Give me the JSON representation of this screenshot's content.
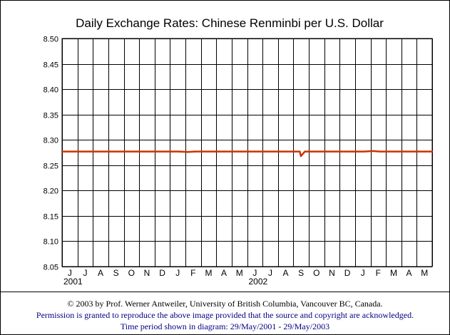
{
  "chart_data": {
    "type": "line",
    "title": "Daily Exchange Rates: Chinese Renminbi per U.S. Dollar",
    "xlabel": "",
    "ylabel": "",
    "ylim": [
      8.05,
      8.5
    ],
    "yticks": [
      "8.50",
      "8.45",
      "8.40",
      "8.35",
      "8.30",
      "8.25",
      "8.20",
      "8.15",
      "8.10",
      "8.05"
    ],
    "month_labels": [
      "J",
      "J",
      "A",
      "S",
      "O",
      "N",
      "D",
      "J",
      "F",
      "M",
      "A",
      "M",
      "J",
      "J",
      "A",
      "S",
      "O",
      "N",
      "D",
      "J",
      "F",
      "M",
      "A",
      "M"
    ],
    "year_labels": [
      {
        "label": "2001",
        "month_index": 0
      },
      {
        "label": "2002",
        "month_index": 12
      }
    ],
    "grid": true,
    "line_color": "#cc3300",
    "series": [
      {
        "x": [
          "2001-05-29",
          "2001-06-15",
          "2001-07-01",
          "2001-07-15",
          "2001-08-01",
          "2001-08-15",
          "2001-09-01",
          "2001-09-15",
          "2001-10-01",
          "2001-10-15",
          "2001-11-01",
          "2001-11-15",
          "2001-12-01",
          "2001-12-15",
          "2002-01-01",
          "2002-01-15",
          "2002-02-01",
          "2002-02-15",
          "2002-03-01",
          "2002-03-15",
          "2002-04-01",
          "2002-04-15",
          "2002-05-01",
          "2002-05-15",
          "2002-06-01",
          "2002-06-15",
          "2002-07-01",
          "2002-07-15",
          "2002-08-01",
          "2002-08-15",
          "2002-09-01",
          "2002-09-10",
          "2002-09-12",
          "2002-09-20",
          "2002-10-01",
          "2002-10-15",
          "2002-11-01",
          "2002-11-15",
          "2002-12-01",
          "2002-12-15",
          "2003-01-01",
          "2003-01-15",
          "2003-02-01",
          "2003-02-15",
          "2003-03-01",
          "2003-03-15",
          "2003-04-01",
          "2003-04-15",
          "2003-05-01",
          "2003-05-15",
          "2003-05-29"
        ],
        "values": [
          8.277,
          8.277,
          8.277,
          8.277,
          8.277,
          8.277,
          8.277,
          8.277,
          8.277,
          8.277,
          8.277,
          8.277,
          8.277,
          8.277,
          8.277,
          8.277,
          8.276,
          8.277,
          8.277,
          8.277,
          8.277,
          8.277,
          8.277,
          8.277,
          8.277,
          8.277,
          8.277,
          8.277,
          8.277,
          8.277,
          8.277,
          8.277,
          8.268,
          8.277,
          8.277,
          8.277,
          8.277,
          8.277,
          8.277,
          8.277,
          8.277,
          8.277,
          8.278,
          8.277,
          8.277,
          8.277,
          8.277,
          8.277,
          8.277,
          8.277,
          8.277
        ]
      }
    ]
  },
  "footer": {
    "line1": "© 2003 by Prof. Werner Antweiler, University of British Columbia, Vancouver BC, Canada.",
    "line2": "Permission is granted to reproduce the above image provided that the source and copyright are acknowledged.",
    "line3": "Time period shown in diagram: 29/May/2001 - 29/May/2003"
  }
}
